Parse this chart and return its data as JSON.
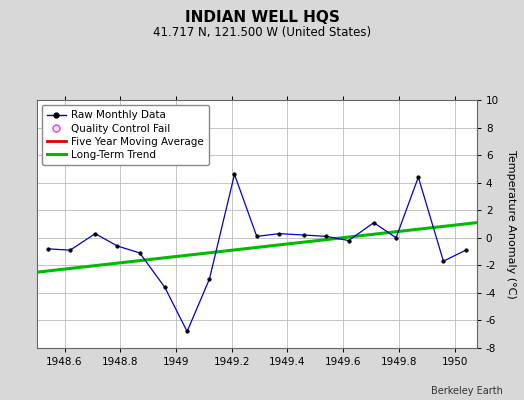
{
  "title": "INDIAN WELL HQS",
  "subtitle": "41.717 N, 121.500 W (United States)",
  "ylabel": "Temperature Anomaly (°C)",
  "credit": "Berkeley Earth",
  "ylim": [
    -8,
    10
  ],
  "xlim": [
    1948.5,
    1950.08
  ],
  "xticks": [
    1948.6,
    1948.8,
    1949.0,
    1949.2,
    1949.4,
    1949.6,
    1949.8,
    1950.0
  ],
  "xtick_labels": [
    "1948.6",
    "1948.8",
    "1949",
    "1949.2",
    "1949.4",
    "1949.6",
    "1949.8",
    "1950"
  ],
  "yticks": [
    -8,
    -6,
    -4,
    -2,
    0,
    2,
    4,
    6,
    8,
    10
  ],
  "raw_x": [
    1948.54,
    1948.62,
    1948.71,
    1948.79,
    1948.87,
    1948.96,
    1949.04,
    1949.12,
    1949.21,
    1949.29,
    1949.37,
    1949.46,
    1949.54,
    1949.62,
    1949.71,
    1949.79,
    1949.87,
    1949.96,
    1950.04
  ],
  "raw_y": [
    -0.8,
    -0.9,
    0.3,
    -0.6,
    -1.1,
    -3.6,
    -6.8,
    -3.0,
    4.6,
    0.1,
    0.3,
    0.2,
    0.1,
    -0.2,
    1.1,
    0.0,
    4.4,
    -1.7,
    -0.9
  ],
  "trend_x": [
    1948.5,
    1950.08
  ],
  "trend_y": [
    -2.5,
    1.1
  ],
  "raw_color": "#0000cc",
  "trend_color": "#00bb00",
  "moving_avg_color": "#dd0000",
  "qc_color": "#ff44ff",
  "bg_color": "#d8d8d8",
  "plot_bg_color": "#ffffff",
  "grid_color": "#bbbbbb",
  "title_fontsize": 11,
  "subtitle_fontsize": 8.5,
  "ylabel_fontsize": 8,
  "tick_fontsize": 7.5,
  "legend_fontsize": 7.5,
  "credit_fontsize": 7
}
